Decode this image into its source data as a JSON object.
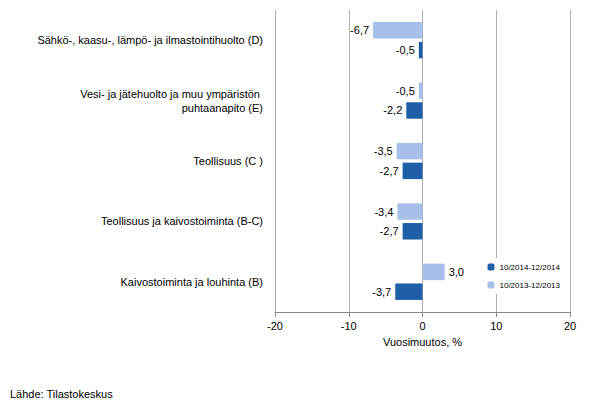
{
  "chart_data": {
    "type": "bar",
    "orientation": "horizontal",
    "x_label": "Vuosimuutos, %",
    "source": "Lähde: Tilastokeskus",
    "categories": [
      "Kaivostoiminta ja louhinta (B)",
      "Teollisuus ja kaivostoiminta (B-C)",
      "Teollisuus (C )",
      "Vesi- ja jätehuolto ja muu ympäristön puhtaanapito (E)",
      "Sähkö-, kaasu-, lämpö- ja ilmastointihuolto (D)"
    ],
    "series": [
      {
        "name": "10/2014-12/2014",
        "color": "#1f5fa8",
        "values": [
          -3.7,
          -2.7,
          -2.7,
          -2.2,
          -0.5
        ],
        "value_labels": [
          "-3,7",
          "-2,7",
          "-2,7",
          "-2,2",
          "-0,5"
        ]
      },
      {
        "name": "10/2013-12/2013",
        "color": "#a8bfea",
        "values": [
          3.0,
          -3.4,
          -3.5,
          -0.5,
          -6.7
        ],
        "value_labels": [
          "3,0",
          "-3,4",
          "-3,5",
          "-0,5",
          "-6,7"
        ]
      }
    ],
    "xlim": [
      -20,
      20
    ],
    "xticks": [
      -20,
      -10,
      0,
      10,
      20
    ],
    "grid": true,
    "legend": "lower right",
    "data_labels": true
  }
}
